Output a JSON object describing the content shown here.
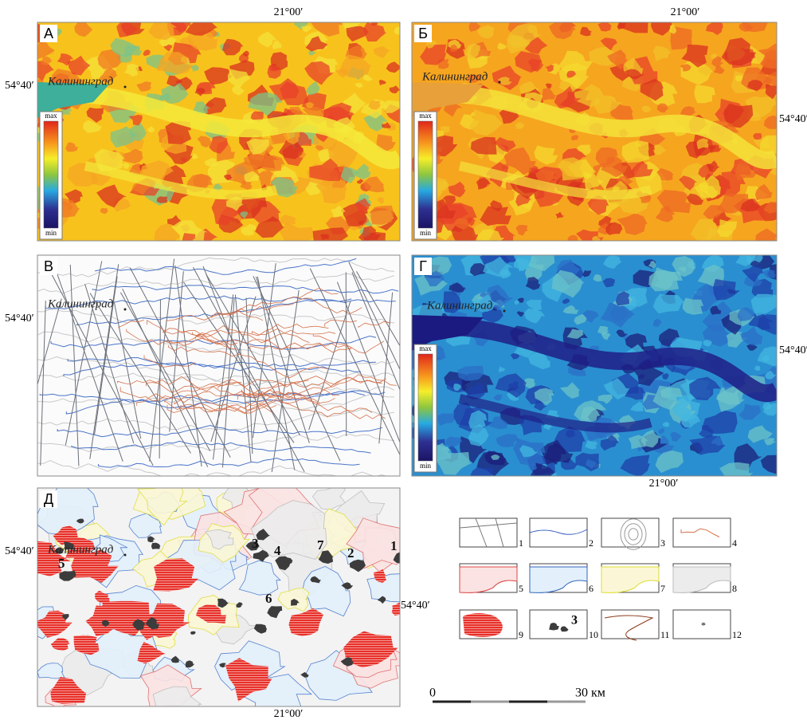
{
  "panels": [
    {
      "label": "А",
      "city": "Калининград",
      "colorbar": {
        "max": "max",
        "min": "min"
      },
      "coords": [
        "21°00′",
        "54°40′"
      ]
    },
    {
      "label": "Б",
      "city": "Калининград",
      "colorbar": {
        "max": "max",
        "min": "min"
      },
      "coords": [
        "21°00′",
        "54°40′"
      ]
    },
    {
      "label": "В",
      "city": "Калининград",
      "coords": [
        "54°40′"
      ]
    },
    {
      "label": "Г",
      "city": "Калининград",
      "colorbar": {
        "max": "max",
        "min": "min"
      },
      "coords": [
        "54°40′",
        "21°00′"
      ]
    },
    {
      "label": "Д",
      "city": "Калининград",
      "coords": [
        "54°40′",
        "54°40′",
        "21°00′"
      ],
      "features": [
        "3",
        "4",
        "7",
        "2",
        "1",
        "5",
        "6"
      ]
    }
  ],
  "legend": {
    "items": [
      "1",
      "2",
      "3",
      "4",
      "5",
      "6",
      "7",
      "8",
      "9",
      "10",
      "11",
      "12"
    ],
    "sample_number": "3"
  },
  "scale": [
    "0",
    "30 км"
  ]
}
